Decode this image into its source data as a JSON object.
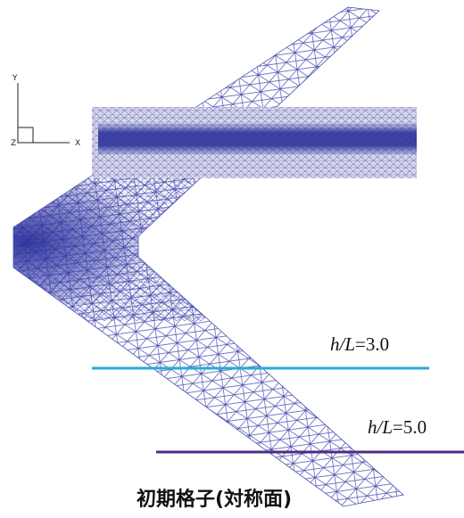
{
  "axes": {
    "y": "Y",
    "x": "X",
    "z": "Z"
  },
  "levels": [
    {
      "variable": "h/L",
      "value": "=3.0"
    },
    {
      "variable": "h/L",
      "value": "=5.0"
    }
  ],
  "caption": "初期格子(対称面)"
}
